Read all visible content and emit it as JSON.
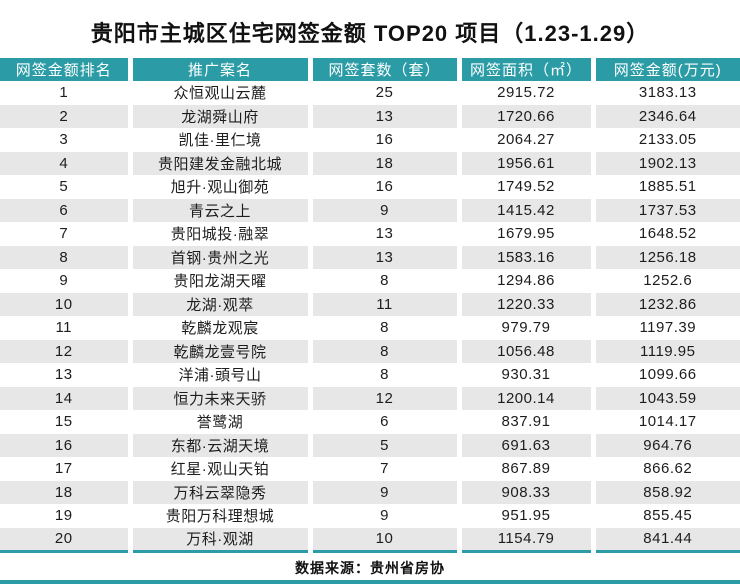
{
  "title": "贵阳市主城区住宅网签金额 TOP20 项目（1.23-1.29）",
  "footer": {
    "source": "数据来源：贵州省房协"
  },
  "colors": {
    "header_bg": "#2B9CA6",
    "row_alt_bg": "#E7E7E7",
    "accent_line": "#2B9CA6",
    "text": "#1D1D1D"
  },
  "chart_data": {
    "type": "table",
    "title": "贵阳市主城区住宅网签金额 TOP20 项目（1.23-1.29）",
    "columns": [
      "网签金额排名",
      "推广案名",
      "网签套数（套）",
      "网签面积（㎡）",
      "网签金额(万元)"
    ],
    "rows": [
      [
        "1",
        "众恒观山云麓",
        "25",
        "2915.72",
        "3183.13"
      ],
      [
        "2",
        "龙湖舜山府",
        "13",
        "1720.66",
        "2346.64"
      ],
      [
        "3",
        "凯佳·里仁境",
        "16",
        "2064.27",
        "2133.05"
      ],
      [
        "4",
        "贵阳建发金融北城",
        "18",
        "1956.61",
        "1902.13"
      ],
      [
        "5",
        "旭升·观山御苑",
        "16",
        "1749.52",
        "1885.51"
      ],
      [
        "6",
        "青云之上",
        "9",
        "1415.42",
        "1737.53"
      ],
      [
        "7",
        "贵阳城投·融翠",
        "13",
        "1679.95",
        "1648.52"
      ],
      [
        "8",
        "首钢·贵州之光",
        "13",
        "1583.16",
        "1256.18"
      ],
      [
        "9",
        "贵阳龙湖天曜",
        "8",
        "1294.86",
        "1252.6"
      ],
      [
        "10",
        "龙湖·观萃",
        "11",
        "1220.33",
        "1232.86"
      ],
      [
        "11",
        "乾麟龙观宸",
        "8",
        "979.79",
        "1197.39"
      ],
      [
        "12",
        "乾麟龙壹号院",
        "8",
        "1056.48",
        "1119.95"
      ],
      [
        "13",
        "洋浦·頭号山",
        "8",
        "930.31",
        "1099.66"
      ],
      [
        "14",
        "恒力未来天骄",
        "12",
        "1200.14",
        "1043.59"
      ],
      [
        "15",
        "誉鹭湖",
        "6",
        "837.91",
        "1014.17"
      ],
      [
        "16",
        "东都·云湖天境",
        "5",
        "691.63",
        "964.76"
      ],
      [
        "17",
        "红星·观山天铂",
        "7",
        "867.89",
        "866.62"
      ],
      [
        "18",
        "万科云翠隐秀",
        "9",
        "908.33",
        "858.92"
      ],
      [
        "19",
        "贵阳万科理想城",
        "9",
        "951.95",
        "855.45"
      ],
      [
        "20",
        "万科·观湖",
        "10",
        "1154.79",
        "841.44"
      ]
    ],
    "source": "数据来源：贵州省房协",
    "layout": {
      "header_row": true,
      "zebra_striping": true,
      "grid": "column-gaps-only"
    }
  }
}
